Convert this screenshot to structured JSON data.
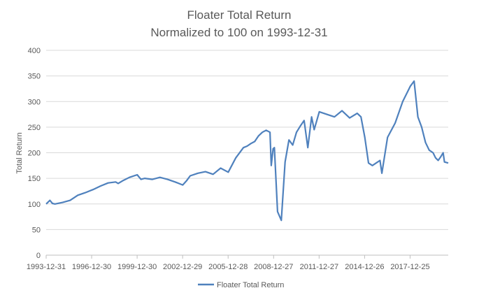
{
  "chart_data": {
    "type": "line",
    "title": "Floater Total Return",
    "subtitle": "Normalized to 100 on 1993-12-31",
    "xlabel": "",
    "ylabel": "Total Return",
    "ylim": [
      0,
      400
    ],
    "y_ticks": [
      0,
      50,
      100,
      150,
      200,
      250,
      300,
      350,
      400
    ],
    "x_tick_labels": [
      "1993-12-31",
      "1996-12-30",
      "1999-12-30",
      "2002-12-29",
      "2005-12-28",
      "2008-12-27",
      "2011-12-27",
      "2014-12-26",
      "2017-12-25"
    ],
    "x_range": [
      "1993-12-31",
      "2020-06-30"
    ],
    "grid": true,
    "legend_position": "bottom",
    "series": [
      {
        "name": "Floater Total Return",
        "color": "#4f81bd",
        "x": [
          "1993-12-31",
          "1994-03-31",
          "1994-05-31",
          "1994-07-31",
          "1995-01-31",
          "1995-07-31",
          "1996-01-31",
          "1996-07-31",
          "1997-01-31",
          "1997-07-31",
          "1998-01-31",
          "1998-07-31",
          "1998-09-30",
          "1999-01-31",
          "1999-06-30",
          "1999-12-31",
          "2000-03-31",
          "2000-06-30",
          "2000-12-31",
          "2001-06-30",
          "2001-12-31",
          "2002-06-30",
          "2002-12-31",
          "2003-03-31",
          "2003-06-30",
          "2003-12-31",
          "2004-06-30",
          "2004-12-31",
          "2005-06-30",
          "2005-12-31",
          "2006-06-30",
          "2006-12-31",
          "2007-03-31",
          "2007-06-30",
          "2007-09-30",
          "2007-10-31",
          "2007-12-31",
          "2008-03-31",
          "2008-06-30",
          "2008-09-30",
          "2008-10-31",
          "2008-12-15",
          "2009-01-15",
          "2009-03-31",
          "2009-06-30",
          "2009-09-30",
          "2009-12-31",
          "2010-03-31",
          "2010-06-30",
          "2010-09-30",
          "2010-12-31",
          "2011-03-31",
          "2011-06-30",
          "2011-08-31",
          "2011-12-31",
          "2012-06-30",
          "2012-12-31",
          "2013-06-30",
          "2013-12-31",
          "2014-06-30",
          "2014-09-30",
          "2014-12-31",
          "2015-03-31",
          "2015-06-30",
          "2015-09-30",
          "2015-12-31",
          "2016-02-15",
          "2016-06-30",
          "2016-12-31",
          "2017-06-30",
          "2017-12-31",
          "2018-03-31",
          "2018-06-30",
          "2018-09-30",
          "2018-12-31",
          "2019-03-31",
          "2019-06-30",
          "2019-08-31",
          "2019-10-31",
          "2019-12-31",
          "2020-02-28",
          "2020-03-31",
          "2020-06-30"
        ],
        "values": [
          100,
          107,
          101,
          100,
          103,
          107,
          117,
          122,
          128,
          135,
          141,
          143,
          140,
          146,
          152,
          157,
          148,
          150,
          148,
          152,
          148,
          143,
          137,
          145,
          155,
          160,
          163,
          158,
          170,
          162,
          190,
          210,
          213,
          218,
          222,
          226,
          233,
          240,
          244,
          240,
          175,
          208,
          210,
          85,
          68,
          182,
          225,
          215,
          240,
          252,
          263,
          210,
          270,
          245,
          280,
          275,
          270,
          282,
          268,
          277,
          270,
          230,
          180,
          175,
          180,
          185,
          160,
          230,
          258,
          300,
          330,
          340,
          270,
          250,
          220,
          205,
          200,
          190,
          185,
          192,
          200,
          182,
          180
        ]
      }
    ]
  }
}
